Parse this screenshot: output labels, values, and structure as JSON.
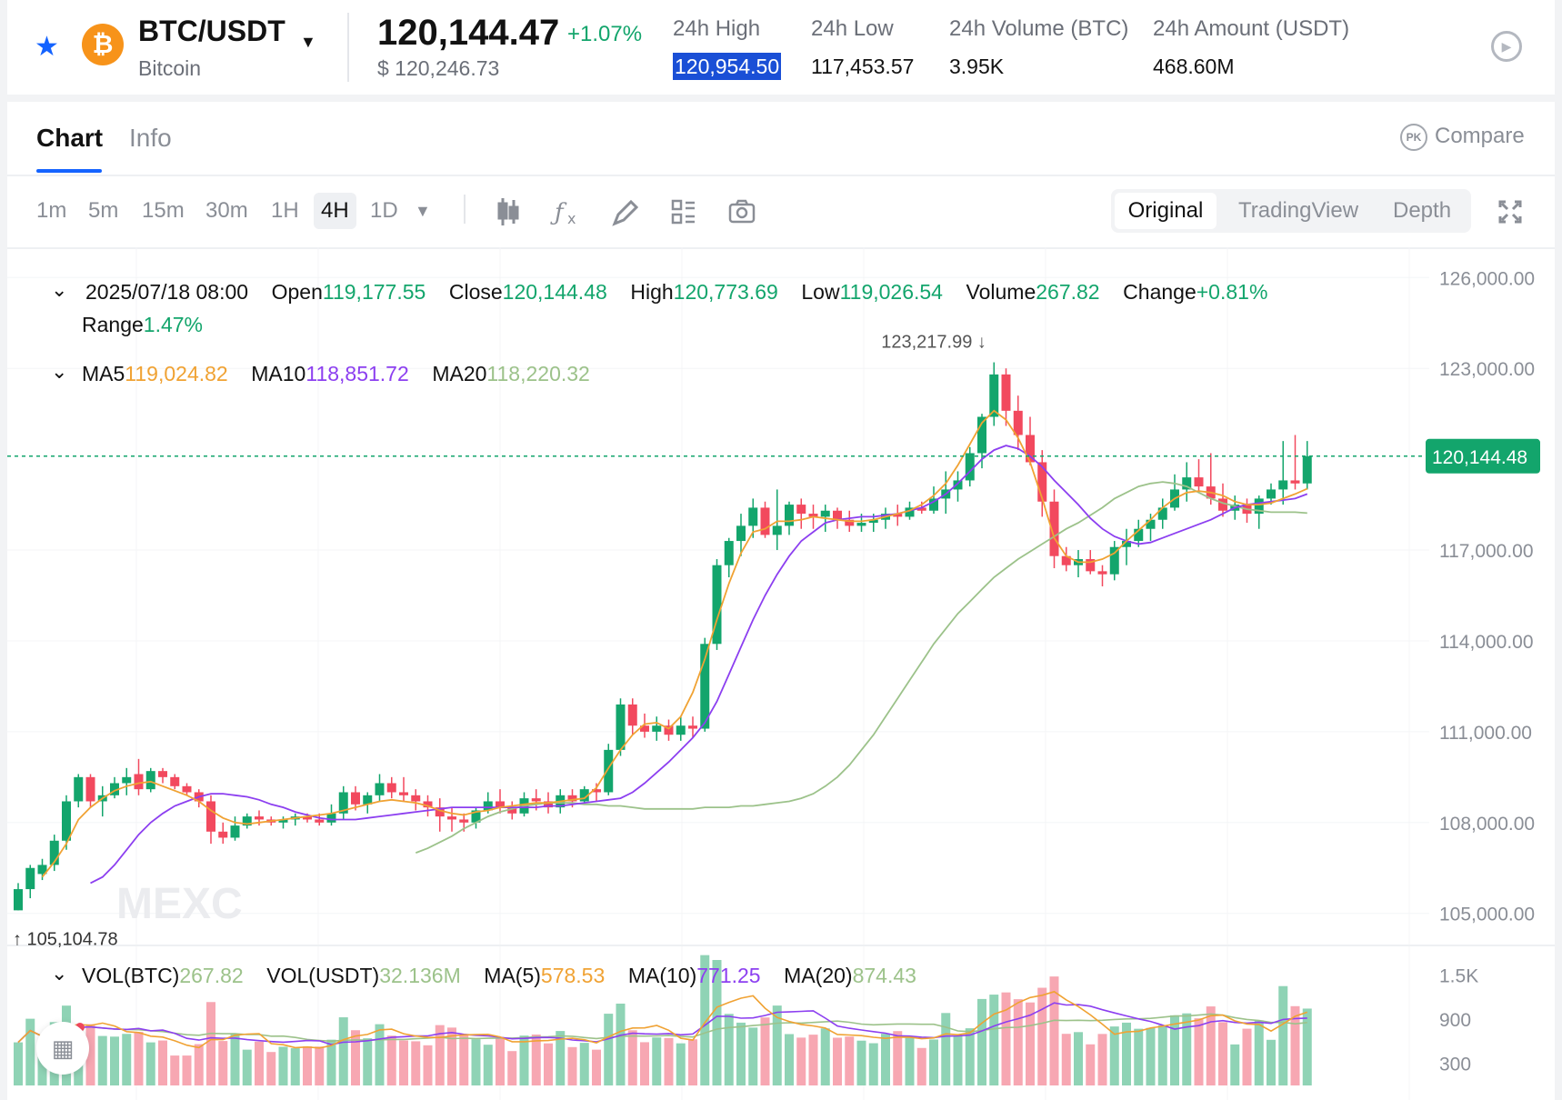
{
  "header": {
    "pair": "BTC/USDT",
    "coin_name": "Bitcoin",
    "coin_symbol": "₿",
    "last_price": "120,144.47",
    "change_pct": "+1.07%",
    "usd_price": "$ 120,246.73",
    "stats": [
      {
        "label": "24h High",
        "value": "120,954.50"
      },
      {
        "label": "24h Low",
        "value": "117,453.57"
      },
      {
        "label": "24h Volume (BTC)",
        "value": "3.95K"
      },
      {
        "label": "24h Amount (USDT)",
        "value": "468.60M"
      }
    ],
    "icons": {
      "favorite": "star-icon",
      "dropdown": "caret-down-icon",
      "play": "play-icon"
    }
  },
  "tabs": {
    "chart": "Chart",
    "info": "Info",
    "compare": "Compare",
    "compare_badge": "PK"
  },
  "toolbar": {
    "timeframes": [
      "1m",
      "5m",
      "15m",
      "30m",
      "1H",
      "4H",
      "1D"
    ],
    "active_timeframe": "4H",
    "views": [
      "Original",
      "TradingView",
      "Depth"
    ],
    "active_view": "Original",
    "tools": [
      "candle-type-icon",
      "indicator-icon",
      "draw-icon",
      "layout-icon",
      "camera-icon",
      "fullscreen-icon"
    ]
  },
  "ohlc": {
    "datetime": "2025/07/18 08:00",
    "open_label": "Open",
    "open": "119,177.55",
    "close_label": "Close",
    "close": "120,144.48",
    "high_label": "High",
    "high": "120,773.69",
    "low_label": "Low",
    "low": "119,026.54",
    "volume_label": "Volume",
    "volume": "267.82",
    "change_label": "Change",
    "change": "+0.81%",
    "range_label": "Range",
    "range": "1.47%"
  },
  "ma": {
    "ma5_label": "MA5",
    "ma5": "119,024.82",
    "ma10_label": "MA10",
    "ma10": "118,851.72",
    "ma20_label": "MA20",
    "ma20": "118,220.32"
  },
  "vol": {
    "vol_btc_label": "VOL(BTC)",
    "vol_btc": "267.82",
    "vol_usdt_label": "VOL(USDT)",
    "vol_usdt": "32.136M",
    "ma5_label": "MA(5)",
    "ma5": "578.53",
    "ma10_label": "MA(10)",
    "ma10": "771.25",
    "ma20_label": "MA(20)",
    "ma20": "874.43"
  },
  "chart": {
    "price_axis": [
      "126,000.00",
      "123,000.00",
      "117,000.00",
      "114,000.00",
      "111,000.00",
      "108,000.00",
      "105,000.00"
    ],
    "vol_axis": [
      "1.5K",
      "900",
      "300"
    ],
    "current_price_tag": "120,144.48",
    "max_marker": "123,217.99",
    "min_marker": "105,104.78",
    "watermark": "MEXC",
    "colors": {
      "up": "#13a56c",
      "down": "#f2495e",
      "ma5": "#f0a233",
      "ma10": "#8c3ff0",
      "ma20": "#9cc28a"
    }
  },
  "chart_data": {
    "type": "candlestick",
    "interval": "4H",
    "ylim": [
      104000,
      127000
    ],
    "candles": [
      [
        105100,
        106000,
        105100,
        105800
      ],
      [
        105800,
        106600,
        105500,
        106500
      ],
      [
        106300,
        106800,
        106100,
        106600
      ],
      [
        106600,
        107600,
        106400,
        107400
      ],
      [
        107400,
        108900,
        107100,
        108700
      ],
      [
        108700,
        109600,
        108500,
        109500
      ],
      [
        109500,
        109600,
        108500,
        108700
      ],
      [
        108700,
        109200,
        108200,
        108900
      ],
      [
        108900,
        109500,
        108800,
        109300
      ],
      [
        109300,
        109800,
        108900,
        109500
      ],
      [
        109600,
        110100,
        108900,
        109100
      ],
      [
        109100,
        109800,
        109000,
        109700
      ],
      [
        109700,
        109800,
        109300,
        109500
      ],
      [
        109500,
        109600,
        109100,
        109200
      ],
      [
        109200,
        109300,
        108900,
        109000
      ],
      [
        109000,
        109100,
        108500,
        108700
      ],
      [
        108700,
        108900,
        107300,
        107700
      ],
      [
        107700,
        108000,
        107300,
        107500
      ],
      [
        107500,
        108200,
        107400,
        107900
      ],
      [
        107900,
        108300,
        107800,
        108200
      ],
      [
        108200,
        108400,
        107900,
        108100
      ],
      [
        108100,
        108200,
        107900,
        108000
      ],
      [
        108000,
        108200,
        107800,
        108100
      ],
      [
        108100,
        108300,
        107900,
        108200
      ],
      [
        108200,
        108300,
        108000,
        108100
      ],
      [
        108100,
        108300,
        107900,
        108000
      ],
      [
        108000,
        108600,
        107900,
        108300
      ],
      [
        108300,
        109200,
        108100,
        109000
      ],
      [
        109000,
        109200,
        108400,
        108600
      ],
      [
        108600,
        109000,
        108300,
        108900
      ],
      [
        108900,
        109600,
        108700,
        109300
      ],
      [
        109300,
        109500,
        108800,
        109000
      ],
      [
        109000,
        109500,
        108700,
        108900
      ],
      [
        108900,
        109100,
        108400,
        108700
      ],
      [
        108700,
        108900,
        108200,
        108500
      ],
      [
        108500,
        108800,
        107700,
        108200
      ],
      [
        108200,
        108500,
        107700,
        108100
      ],
      [
        108100,
        108300,
        107700,
        108000
      ],
      [
        108000,
        108500,
        107800,
        108400
      ],
      [
        108400,
        109000,
        108300,
        108700
      ],
      [
        108700,
        109100,
        108300,
        108500
      ],
      [
        108500,
        108700,
        108100,
        108300
      ],
      [
        108300,
        109000,
        108200,
        108800
      ],
      [
        108800,
        109100,
        108400,
        108700
      ],
      [
        108700,
        109000,
        108300,
        108500
      ],
      [
        108500,
        109100,
        108300,
        108900
      ],
      [
        108900,
        109100,
        108500,
        108700
      ],
      [
        108700,
        109200,
        108600,
        109100
      ],
      [
        109100,
        109300,
        108700,
        109000
      ],
      [
        109000,
        110600,
        108900,
        110400
      ],
      [
        110400,
        112100,
        110200,
        111900
      ],
      [
        111900,
        112100,
        110900,
        111200
      ],
      [
        111200,
        111600,
        110800,
        111000
      ],
      [
        111000,
        111500,
        110700,
        111200
      ],
      [
        111200,
        111400,
        110700,
        110900
      ],
      [
        110900,
        111500,
        110700,
        111200
      ],
      [
        111200,
        111500,
        110800,
        111100
      ],
      [
        111100,
        114100,
        111000,
        113900
      ],
      [
        113900,
        116700,
        113700,
        116500
      ],
      [
        116500,
        117400,
        116100,
        117300
      ],
      [
        117300,
        118200,
        116800,
        117800
      ],
      [
        117800,
        118700,
        117400,
        118400
      ],
      [
        118400,
        118600,
        117400,
        117500
      ],
      [
        117500,
        119000,
        117000,
        117800
      ],
      [
        117800,
        118600,
        117500,
        118500
      ],
      [
        118500,
        118700,
        117700,
        118200
      ],
      [
        118200,
        118500,
        117700,
        118100
      ],
      [
        118100,
        118500,
        117600,
        118300
      ],
      [
        118300,
        118400,
        117700,
        118000
      ],
      [
        118000,
        118300,
        117600,
        117800
      ],
      [
        117800,
        118200,
        117600,
        117900
      ],
      [
        117900,
        118200,
        117600,
        118000
      ],
      [
        118000,
        118400,
        117700,
        118200
      ],
      [
        118200,
        118500,
        117800,
        118100
      ],
      [
        118100,
        118600,
        118000,
        118400
      ],
      [
        118400,
        118600,
        118200,
        118300
      ],
      [
        118300,
        119100,
        118200,
        118700
      ],
      [
        118700,
        119600,
        118200,
        119000
      ],
      [
        119000,
        119600,
        118600,
        119300
      ],
      [
        119300,
        120400,
        119100,
        120200
      ],
      [
        120200,
        121500,
        119700,
        121400
      ],
      [
        121400,
        123200,
        121100,
        122800
      ],
      [
        122800,
        123000,
        121100,
        121600
      ],
      [
        121600,
        122100,
        120300,
        120800
      ],
      [
        120800,
        121400,
        119800,
        119900
      ],
      [
        119900,
        120300,
        118100,
        118600
      ],
      [
        118600,
        119000,
        116400,
        116800
      ],
      [
        116800,
        117100,
        116300,
        116500
      ],
      [
        116500,
        117000,
        116100,
        116700
      ],
      [
        116700,
        117000,
        116200,
        116300
      ],
      [
        116300,
        116500,
        115800,
        116200
      ],
      [
        116200,
        117300,
        116000,
        117100
      ],
      [
        117100,
        117700,
        116500,
        117300
      ],
      [
        117300,
        118000,
        117100,
        117700
      ],
      [
        117700,
        118200,
        117300,
        118000
      ],
      [
        118000,
        118700,
        117700,
        118400
      ],
      [
        118400,
        119500,
        118300,
        119000
      ],
      [
        119000,
        119900,
        118600,
        119400
      ],
      [
        119400,
        120000,
        118900,
        119100
      ],
      [
        119100,
        120200,
        118500,
        118700
      ],
      [
        118700,
        119200,
        118100,
        118300
      ],
      [
        118300,
        118800,
        118000,
        118500
      ],
      [
        118500,
        118700,
        117900,
        118200
      ],
      [
        118200,
        118800,
        117700,
        118700
      ],
      [
        118700,
        119200,
        118500,
        119000
      ],
      [
        119000,
        120600,
        118500,
        119300
      ],
      [
        119300,
        120800,
        119000,
        119200
      ],
      [
        119200,
        120600,
        119000,
        120100
      ]
    ],
    "volume_ylim": [
      0,
      1900
    ],
    "ma5": [
      106200,
      106700,
      107300,
      108100,
      108500,
      108800,
      109050,
      109200,
      109300,
      109350,
      109200,
      109050,
      108900,
      108700,
      108400,
      108150,
      108000,
      107950,
      108000,
      108050,
      108100,
      108150,
      108200,
      108250,
      108300,
      108400,
      108500,
      108600,
      108700,
      108750,
      108700,
      108650,
      108550,
      108400,
      108300,
      108250,
      108350,
      108400,
      108500,
      108550,
      108600,
      108650,
      108650,
      108700,
      108750,
      108800,
      109150,
      109800,
      110400,
      110900,
      111250,
      111300,
      111100,
      111500,
      112300,
      113400,
      114700,
      115900,
      116900,
      117600,
      117700,
      117950,
      117950,
      118000,
      118100,
      118050,
      118000,
      117950,
      117950,
      118000,
      118100,
      118200,
      118300,
      118500,
      118800,
      119200,
      119800,
      120500,
      121200,
      121600,
      121300,
      120700,
      119900,
      118700,
      117400,
      116800,
      116600,
      116600,
      116700,
      116900,
      117300,
      117650,
      118000,
      118400,
      118700,
      118900,
      118950,
      118900,
      118800,
      118600,
      118500,
      118500,
      118550,
      118700,
      118850,
      119025
    ],
    "ma10": [
      106000,
      106200,
      106600,
      107100,
      107600,
      108000,
      108300,
      108550,
      108700,
      108850,
      108950,
      108950,
      108900,
      108850,
      108750,
      108600,
      108500,
      108350,
      108250,
      108150,
      108100,
      108100,
      108100,
      108150,
      108200,
      108250,
      108300,
      108350,
      108400,
      108450,
      108500,
      108500,
      108500,
      108500,
      108500,
      108500,
      108500,
      108500,
      108550,
      108550,
      108600,
      108650,
      108700,
      108750,
      108800,
      109000,
      109300,
      109650,
      110000,
      110400,
      110800,
      111300,
      112000,
      112900,
      113800,
      114700,
      115500,
      116200,
      116800,
      117300,
      117600,
      117900,
      118000,
      118050,
      118100,
      118100,
      118150,
      118200,
      118300,
      118400,
      118600,
      118850,
      119200,
      119600,
      120000,
      120300,
      120450,
      120350,
      120100,
      119750,
      119300,
      118900,
      118500,
      118050,
      117700,
      117450,
      117300,
      117200,
      117250,
      117400,
      117550,
      117700,
      117850,
      118000,
      118200,
      118400,
      118500,
      118550,
      118600,
      118650,
      118700,
      118852
    ],
    "ma20": [
      107000,
      107150,
      107350,
      107550,
      107800,
      108000,
      108200,
      108350,
      108450,
      108550,
      108600,
      108650,
      108650,
      108650,
      108600,
      108600,
      108550,
      108550,
      108500,
      108450,
      108450,
      108450,
      108450,
      108450,
      108500,
      108500,
      108500,
      108550,
      108550,
      108600,
      108650,
      108700,
      108800,
      108950,
      109200,
      109500,
      109900,
      110400,
      110900,
      111500,
      112100,
      112700,
      113300,
      113900,
      114400,
      114900,
      115300,
      115700,
      116100,
      116400,
      116700,
      116950,
      117200,
      117450,
      117700,
      117900,
      118150,
      118400,
      118700,
      118900,
      119100,
      119200,
      119250,
      119200,
      119100,
      118900,
      118700,
      118550,
      118450,
      118350,
      118300,
      118250,
      118250,
      118250,
      118220
    ]
  }
}
